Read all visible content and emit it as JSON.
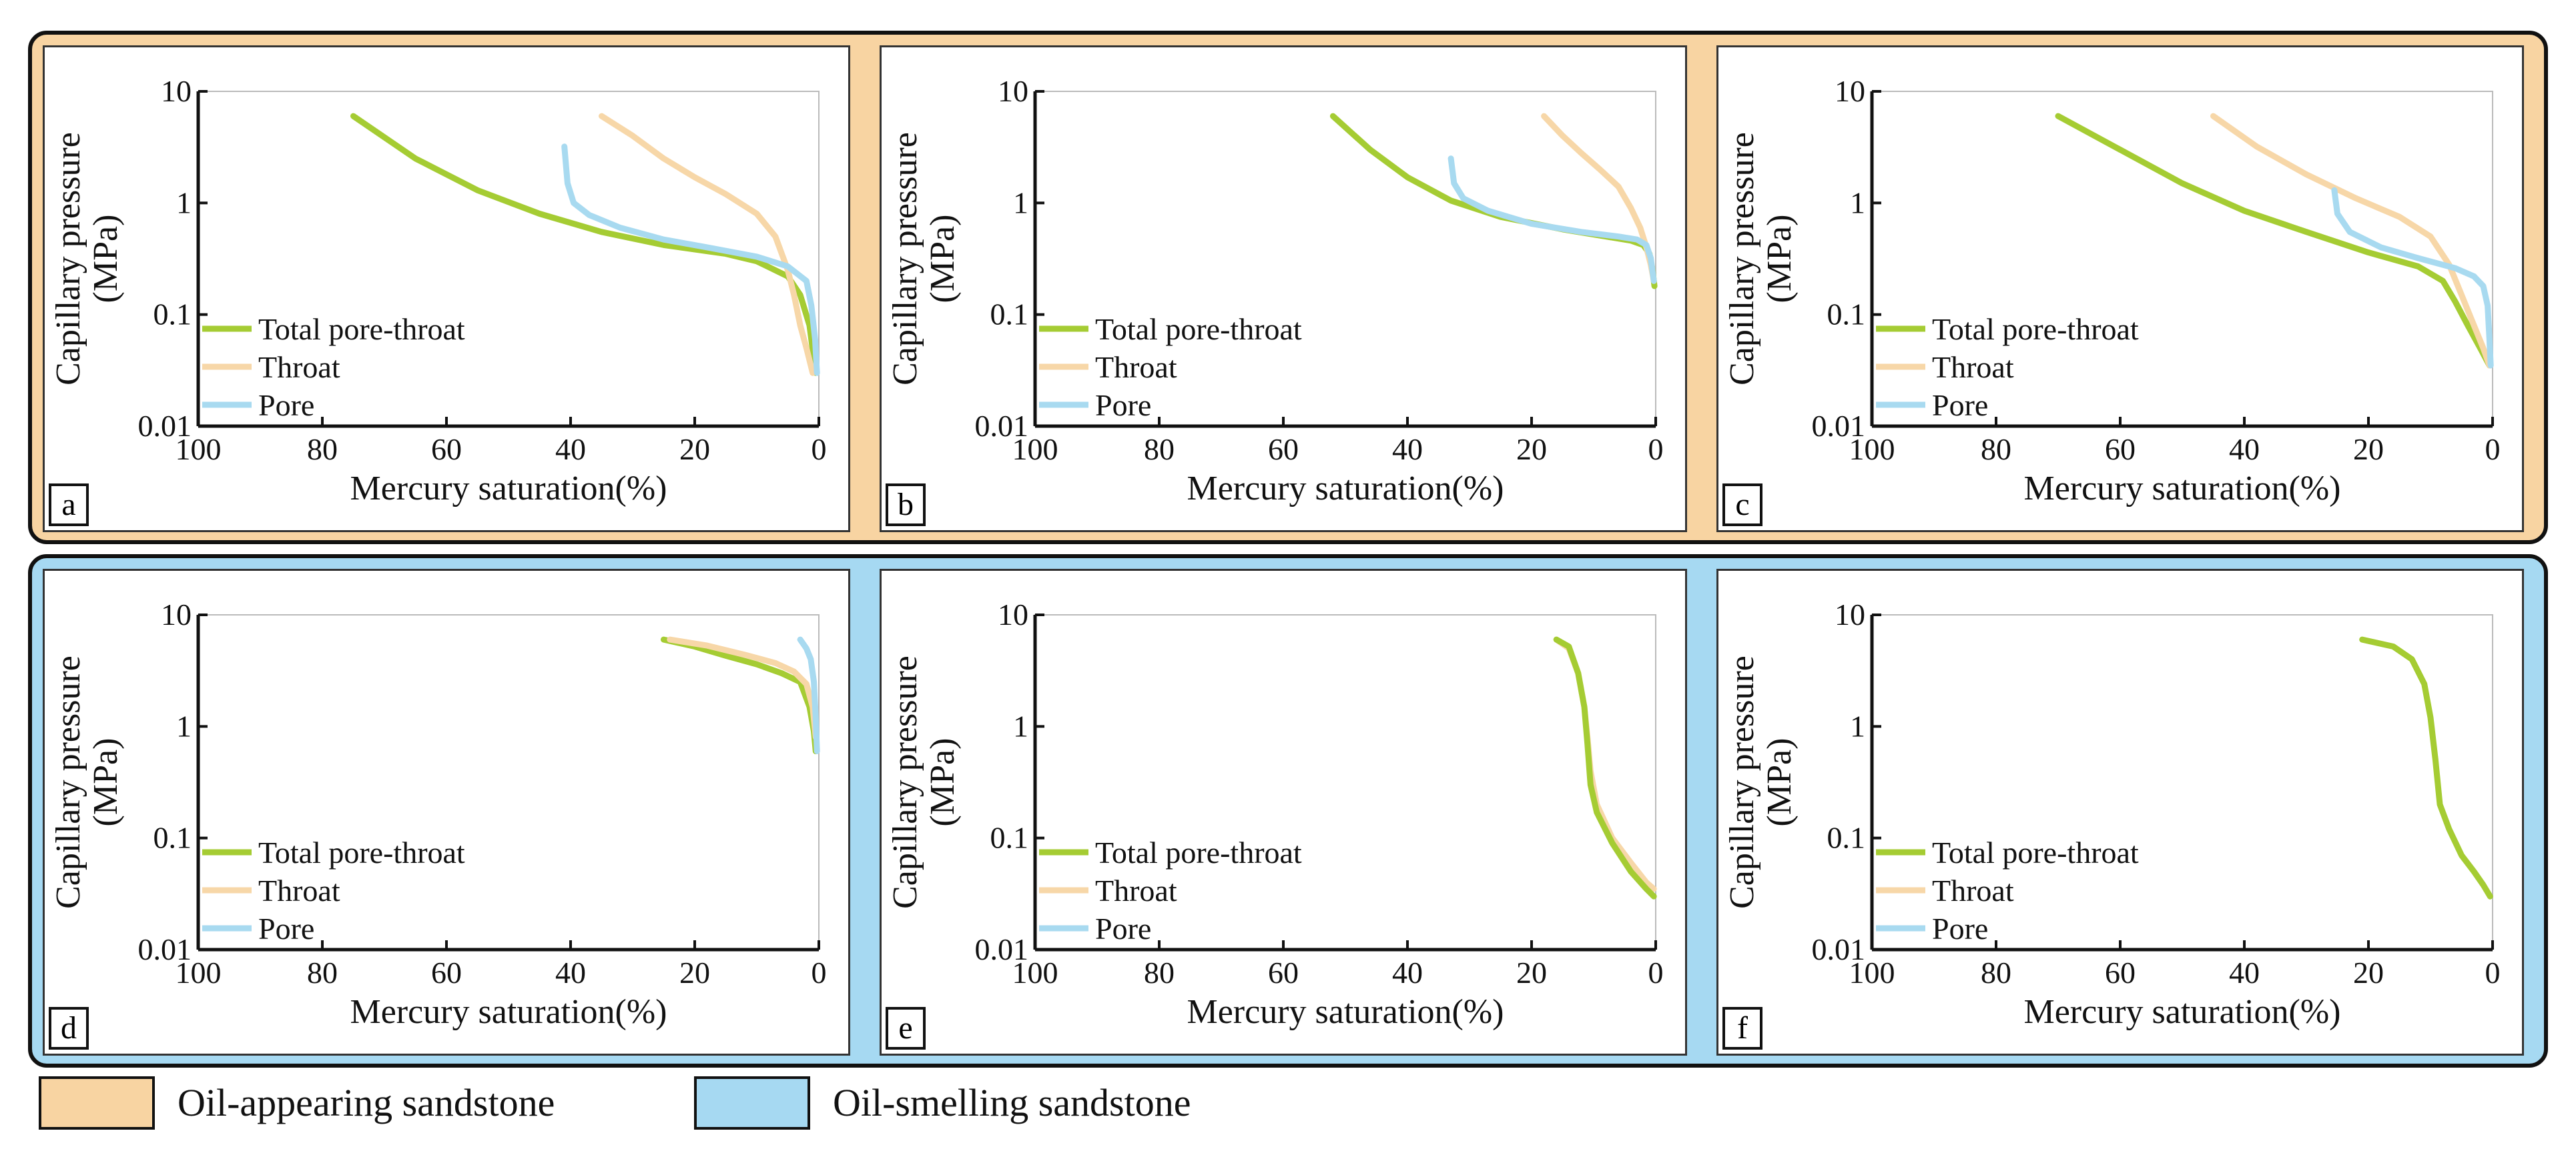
{
  "groups": [
    {
      "name": "Oil-appearing sandstone",
      "color": "#f8d4a2"
    },
    {
      "name": "Oil-smelling sandstone",
      "color": "#a6d9f2"
    }
  ],
  "series_colors": {
    "Total pore-throat": "#a5cc33",
    "Throat": "#f7d7a8",
    "Pore": "#a8daf0"
  },
  "chart_data": [
    {
      "id": "a",
      "type": "line",
      "group": "Oil-appearing sandstone",
      "xlabel": "Mercury saturation(%)",
      "ylabel": "Capillary pressure (MPa)",
      "xlim": [
        100,
        0
      ],
      "x_reversed": true,
      "ylim": [
        0.01,
        10
      ],
      "y_scale": "log",
      "xticks": [
        "100",
        "80",
        "60",
        "40",
        "20",
        "0"
      ],
      "yticks": [
        "10",
        "1",
        "0.1",
        "0.01"
      ],
      "legend_position": "bottom-left",
      "series": [
        {
          "name": "Total pore-throat",
          "points": [
            [
              75,
              6
            ],
            [
              65,
              2.5
            ],
            [
              55,
              1.3
            ],
            [
              45,
              0.8
            ],
            [
              35,
              0.55
            ],
            [
              25,
              0.42
            ],
            [
              15,
              0.35
            ],
            [
              10,
              0.3
            ],
            [
              5,
              0.22
            ],
            [
              3,
              0.15
            ],
            [
              1.5,
              0.08
            ],
            [
              0.5,
              0.03
            ]
          ]
        },
        {
          "name": "Throat",
          "points": [
            [
              35,
              6
            ],
            [
              30,
              4
            ],
            [
              25,
              2.5
            ],
            [
              20,
              1.7
            ],
            [
              15,
              1.2
            ],
            [
              10,
              0.8
            ],
            [
              7,
              0.5
            ],
            [
              5,
              0.25
            ],
            [
              4,
              0.15
            ],
            [
              3,
              0.08
            ],
            [
              2,
              0.05
            ],
            [
              1,
              0.03
            ]
          ]
        },
        {
          "name": "Pore",
          "points": [
            [
              41,
              3.2
            ],
            [
              40.5,
              1.5
            ],
            [
              39.5,
              1
            ],
            [
              37,
              0.78
            ],
            [
              32,
              0.6
            ],
            [
              25,
              0.47
            ],
            [
              18,
              0.4
            ],
            [
              10,
              0.33
            ],
            [
              5,
              0.27
            ],
            [
              2,
              0.2
            ],
            [
              1.2,
              0.12
            ],
            [
              0.6,
              0.06
            ],
            [
              0.3,
              0.03
            ]
          ]
        }
      ]
    },
    {
      "id": "b",
      "type": "line",
      "group": "Oil-appearing sandstone",
      "xlabel": "Mercury saturation(%)",
      "ylabel": "Capillary pressure (MPa)",
      "xlim": [
        100,
        0
      ],
      "x_reversed": true,
      "ylim": [
        0.01,
        10
      ],
      "y_scale": "log",
      "xticks": [
        "100",
        "80",
        "60",
        "40",
        "20",
        "0"
      ],
      "yticks": [
        "10",
        "1",
        "0.1",
        "0.01"
      ],
      "legend_position": "bottom-left",
      "series": [
        {
          "name": "Total pore-throat",
          "points": [
            [
              52,
              6
            ],
            [
              46,
              3
            ],
            [
              40,
              1.7
            ],
            [
              33,
              1.05
            ],
            [
              25,
              0.75
            ],
            [
              15,
              0.58
            ],
            [
              8,
              0.5
            ],
            [
              4,
              0.46
            ],
            [
              2,
              0.42
            ],
            [
              1,
              0.35
            ],
            [
              0.5,
              0.25
            ],
            [
              0.2,
              0.18
            ]
          ]
        },
        {
          "name": "Throat",
          "points": [
            [
              18,
              6
            ],
            [
              15,
              4
            ],
            [
              12,
              2.8
            ],
            [
              9,
              2
            ],
            [
              6,
              1.4
            ],
            [
              4,
              0.9
            ],
            [
              2.5,
              0.6
            ],
            [
              1.5,
              0.4
            ],
            [
              0.8,
              0.28
            ],
            [
              0.3,
              0.2
            ]
          ]
        },
        {
          "name": "Pore",
          "points": [
            [
              33,
              2.5
            ],
            [
              32.5,
              1.5
            ],
            [
              31,
              1.1
            ],
            [
              27,
              0.85
            ],
            [
              20,
              0.65
            ],
            [
              12,
              0.55
            ],
            [
              6,
              0.5
            ],
            [
              3,
              0.47
            ],
            [
              1.5,
              0.42
            ],
            [
              0.8,
              0.32
            ],
            [
              0.3,
              0.2
            ]
          ]
        }
      ]
    },
    {
      "id": "c",
      "type": "line",
      "group": "Oil-appearing sandstone",
      "xlabel": "Mercury saturation(%)",
      "ylabel": "Capillary pressure (MPa)",
      "xlim": [
        100,
        0
      ],
      "x_reversed": true,
      "ylim": [
        0.01,
        10
      ],
      "y_scale": "log",
      "xticks": [
        "100",
        "80",
        "60",
        "40",
        "20",
        "0"
      ],
      "yticks": [
        "10",
        "1",
        "0.1",
        "0.01"
      ],
      "legend_position": "bottom-left",
      "series": [
        {
          "name": "Total pore-throat",
          "points": [
            [
              70,
              6
            ],
            [
              60,
              3
            ],
            [
              50,
              1.5
            ],
            [
              40,
              0.85
            ],
            [
              30,
              0.55
            ],
            [
              20,
              0.36
            ],
            [
              12,
              0.27
            ],
            [
              8,
              0.2
            ],
            [
              6,
              0.13
            ],
            [
              4,
              0.08
            ],
            [
              2,
              0.05
            ],
            [
              0.5,
              0.035
            ]
          ]
        },
        {
          "name": "Throat",
          "points": [
            [
              45,
              6
            ],
            [
              38,
              3.2
            ],
            [
              30,
              1.8
            ],
            [
              22,
              1.1
            ],
            [
              15,
              0.75
            ],
            [
              10,
              0.5
            ],
            [
              7,
              0.28
            ],
            [
              5,
              0.15
            ],
            [
              3,
              0.08
            ],
            [
              1.5,
              0.05
            ],
            [
              0.5,
              0.035
            ]
          ]
        },
        {
          "name": "Pore",
          "points": [
            [
              25.5,
              1.3
            ],
            [
              25,
              0.8
            ],
            [
              23,
              0.55
            ],
            [
              18,
              0.4
            ],
            [
              12,
              0.32
            ],
            [
              6,
              0.26
            ],
            [
              3,
              0.22
            ],
            [
              1.5,
              0.18
            ],
            [
              0.8,
              0.12
            ],
            [
              0.5,
              0.06
            ],
            [
              0.3,
              0.035
            ]
          ]
        }
      ]
    },
    {
      "id": "d",
      "type": "line",
      "group": "Oil-smelling sandstone",
      "xlabel": "Mercury saturation(%)",
      "ylabel": "Capillary pressure (MPa)",
      "xlim": [
        100,
        0
      ],
      "x_reversed": true,
      "ylim": [
        0.01,
        10
      ],
      "y_scale": "log",
      "xticks": [
        "100",
        "80",
        "60",
        "40",
        "20",
        "0"
      ],
      "yticks": [
        "10",
        "1",
        "0.1",
        "0.01"
      ],
      "legend_position": "bottom-left",
      "series": [
        {
          "name": "Total pore-throat",
          "points": [
            [
              25,
              6
            ],
            [
              20,
              5.2
            ],
            [
              15,
              4.3
            ],
            [
              10,
              3.6
            ],
            [
              6,
              3
            ],
            [
              3,
              2.5
            ],
            [
              1.5,
              1.5
            ],
            [
              0.8,
              0.9
            ],
            [
              0.5,
              0.6
            ]
          ]
        },
        {
          "name": "Throat",
          "points": [
            [
              24,
              6
            ],
            [
              18,
              5.3
            ],
            [
              12,
              4.4
            ],
            [
              7,
              3.7
            ],
            [
              4,
              3.1
            ],
            [
              2,
              2.4
            ],
            [
              1,
              1.5
            ],
            [
              0.5,
              0.8
            ]
          ]
        },
        {
          "name": "Pore",
          "points": [
            [
              3,
              6
            ],
            [
              2,
              5
            ],
            [
              1.3,
              4
            ],
            [
              0.8,
              2.5
            ],
            [
              0.5,
              1.2
            ],
            [
              0.3,
              0.6
            ]
          ]
        }
      ]
    },
    {
      "id": "e",
      "type": "line",
      "group": "Oil-smelling sandstone",
      "xlabel": "Mercury saturation(%)",
      "ylabel": "Capillary pressure (MPa)",
      "xlim": [
        100,
        0
      ],
      "x_reversed": true,
      "ylim": [
        0.01,
        10
      ],
      "y_scale": "log",
      "xticks": [
        "100",
        "80",
        "60",
        "40",
        "20",
        "0"
      ],
      "yticks": [
        "10",
        "1",
        "0.1",
        "0.01"
      ],
      "legend_position": "bottom-left",
      "series": [
        {
          "name": "Throat",
          "points": [
            [
              16,
              6
            ],
            [
              14,
              5
            ],
            [
              12.5,
              3
            ],
            [
              11.5,
              1.5
            ],
            [
              11,
              0.8
            ],
            [
              10.5,
              0.4
            ],
            [
              9.5,
              0.2
            ],
            [
              7,
              0.1
            ],
            [
              4,
              0.06
            ],
            [
              1.5,
              0.04
            ],
            [
              0.3,
              0.035
            ]
          ]
        },
        {
          "name": "Total pore-throat",
          "points": [
            [
              16,
              6
            ],
            [
              14,
              5.2
            ],
            [
              12.5,
              3
            ],
            [
              11.5,
              1.5
            ],
            [
              11,
              0.7
            ],
            [
              10.5,
              0.3
            ],
            [
              9.5,
              0.17
            ],
            [
              7,
              0.09
            ],
            [
              4,
              0.05
            ],
            [
              1.5,
              0.035
            ],
            [
              0.3,
              0.03
            ]
          ]
        }
      ]
    },
    {
      "id": "f",
      "type": "line",
      "group": "Oil-smelling sandstone",
      "xlabel": "Mercury saturation(%)",
      "ylabel": "Capillary pressure (MPa)",
      "xlim": [
        100,
        0
      ],
      "x_reversed": true,
      "ylim": [
        0.01,
        10
      ],
      "y_scale": "log",
      "xticks": [
        "100",
        "80",
        "60",
        "40",
        "20",
        "0"
      ],
      "yticks": [
        "10",
        "1",
        "0.1",
        "0.01"
      ],
      "legend_position": "bottom-left",
      "series": [
        {
          "name": "Total pore-throat",
          "points": [
            [
              21,
              6
            ],
            [
              16,
              5.2
            ],
            [
              13,
              4
            ],
            [
              11,
              2.4
            ],
            [
              10,
              1.2
            ],
            [
              9.2,
              0.5
            ],
            [
              8.5,
              0.2
            ],
            [
              7,
              0.12
            ],
            [
              5,
              0.07
            ],
            [
              3,
              0.05
            ],
            [
              1.5,
              0.038
            ],
            [
              0.4,
              0.03
            ]
          ]
        }
      ]
    }
  ]
}
